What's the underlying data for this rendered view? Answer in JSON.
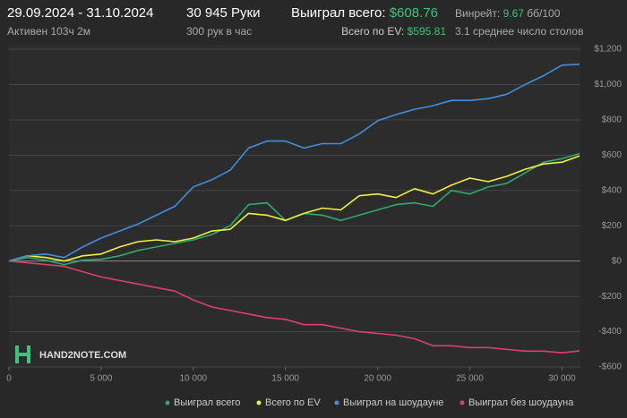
{
  "header": {
    "period": "29.09.2024 - 31.10.2024",
    "active": "Активен 103ч 2м",
    "hands": "30 945 Руки",
    "hands_per_hour": "300 рук в час",
    "won_label": "Выиграл всего:",
    "won_value": "$608.76",
    "ev_label": "Всего по EV:",
    "ev_value": "$595.81",
    "winrate_label": "Винрейт:",
    "winrate_value": "9.67",
    "winrate_unit": "бб/100",
    "tables": "3.1 среднее число столов"
  },
  "logo": "HAND2NOTE.COM",
  "chart_data": {
    "type": "line",
    "x": [
      0,
      1000,
      2000,
      3000,
      4000,
      5000,
      6000,
      7000,
      8000,
      9000,
      10000,
      11000,
      12000,
      13000,
      14000,
      15000,
      16000,
      17000,
      18000,
      19000,
      20000,
      21000,
      22000,
      23000,
      24000,
      25000,
      26000,
      27000,
      28000,
      29000,
      30000,
      30945
    ],
    "series": [
      {
        "name": "Выиграл всего",
        "color": "#2eaa6a",
        "values": [
          0,
          20,
          5,
          -20,
          5,
          10,
          30,
          60,
          80,
          100,
          120,
          150,
          200,
          320,
          330,
          230,
          270,
          260,
          230,
          260,
          290,
          320,
          330,
          310,
          400,
          380,
          420,
          440,
          500,
          560,
          580,
          608.76
        ]
      },
      {
        "name": "Всего по EV",
        "color": "#eef040",
        "values": [
          0,
          30,
          20,
          0,
          30,
          40,
          80,
          110,
          120,
          110,
          130,
          170,
          180,
          270,
          260,
          230,
          270,
          300,
          290,
          370,
          380,
          360,
          410,
          380,
          430,
          470,
          450,
          480,
          520,
          550,
          560,
          595.81
        ]
      },
      {
        "name": "Выиграл на шоудауне",
        "color": "#3d8fe0",
        "values": [
          0,
          30,
          40,
          20,
          80,
          130,
          170,
          210,
          260,
          310,
          420,
          460,
          515,
          640,
          680,
          680,
          640,
          665,
          665,
          720,
          795,
          830,
          860,
          880,
          910,
          910,
          920,
          945,
          1000,
          1050,
          1110,
          1115
        ]
      },
      {
        "name": "Выиграл без шоудауна",
        "color": "#d9406e",
        "values": [
          0,
          -10,
          -20,
          -30,
          -60,
          -90,
          -110,
          -130,
          -150,
          -170,
          -220,
          -260,
          -280,
          -300,
          -320,
          -330,
          -360,
          -360,
          -380,
          -400,
          -410,
          -420,
          -440,
          -480,
          -480,
          -490,
          -490,
          -500,
          -510,
          -510,
          -520,
          -508
        ]
      }
    ],
    "xlim": [
      0,
      31000
    ],
    "xticks": [
      0,
      {
        "value": 5000,
        "label": "5 000"
      },
      {
        "value": 10000,
        "label": "10 000"
      },
      {
        "value": 15000,
        "label": "15 000"
      },
      {
        "value": 20000,
        "label": "20 000"
      },
      {
        "value": 25000,
        "label": "25 000"
      },
      {
        "value": 30000,
        "label": "30 000"
      }
    ],
    "ylim": [
      -600,
      1200
    ],
    "yticks": [
      {
        "value": -600,
        "label": "-$600"
      },
      {
        "value": -400,
        "label": "-$400"
      },
      {
        "value": -200,
        "label": "-$200"
      },
      {
        "value": 0,
        "label": "$0"
      },
      {
        "value": 200,
        "label": "$200"
      },
      {
        "value": 400,
        "label": "$400"
      },
      {
        "value": 600,
        "label": "$600"
      },
      {
        "value": 800,
        "label": "$800"
      },
      {
        "value": 1000,
        "label": "$1,000"
      },
      {
        "value": 1200,
        "label": "$1,200"
      }
    ],
    "grid": true
  }
}
